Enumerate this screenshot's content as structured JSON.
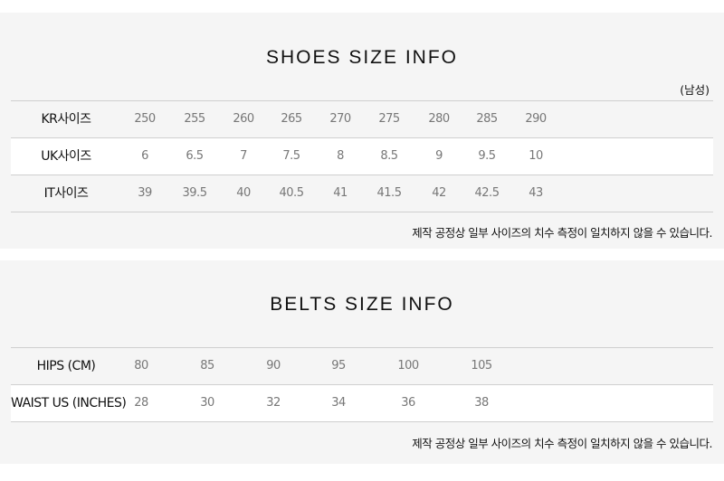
{
  "shoes": {
    "title": "SHOES SIZE INFO",
    "gender": "(남성)",
    "rows": [
      {
        "label": "KR사이즈",
        "values": [
          "250",
          "255",
          "260",
          "265",
          "270",
          "275",
          "280",
          "285",
          "290"
        ]
      },
      {
        "label": "UK사이즈",
        "values": [
          "6",
          "6.5",
          "7",
          "7.5",
          "8",
          "8.5",
          "9",
          "9.5",
          "10"
        ]
      },
      {
        "label": "IT사이즈",
        "values": [
          "39",
          "39.5",
          "40",
          "40.5",
          "41",
          "41.5",
          "42",
          "42.5",
          "43"
        ]
      }
    ],
    "note": "제작 공정상 일부 사이즈의 치수 측정이 일치하지 않을 수 있습니다."
  },
  "belts": {
    "title": "BELTS SIZE INFO",
    "rows": [
      {
        "label": "HIPS (CM)",
        "values": [
          "80",
          "85",
          "90",
          "95",
          "100",
          "105"
        ]
      },
      {
        "label": "WAIST US (INCHES)",
        "values": [
          "28",
          "30",
          "32",
          "34",
          "36",
          "38"
        ]
      }
    ],
    "note": "제작 공정상 일부 사이즈의 치수 측정이 일치하지 않을 수 있습니다."
  }
}
